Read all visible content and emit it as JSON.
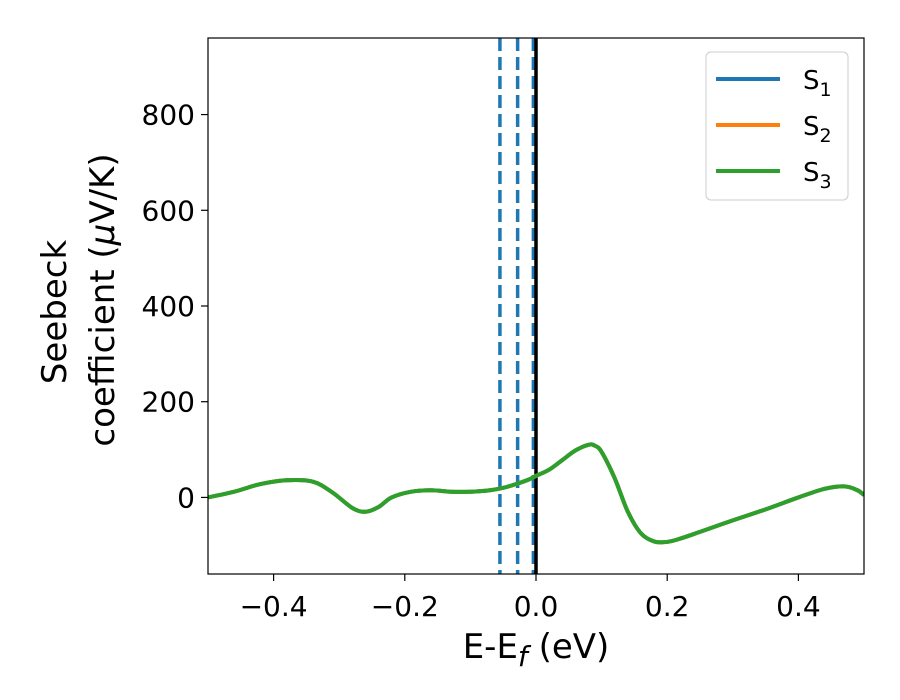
{
  "chart_data": {
    "type": "line",
    "title": "",
    "xlabel": {
      "main": "E-E",
      "sub": "f",
      "suffix": " (eV)"
    },
    "ylabel": {
      "line1": "Seebeck",
      "line2_prefix": "coefficient  (",
      "mu": "μ",
      "line2_suffix": "V/K)"
    },
    "xlim": [
      -0.5,
      0.5
    ],
    "ylim": [
      -160,
      960
    ],
    "x_ticks": [
      -0.4,
      -0.2,
      0.0,
      0.2,
      0.4
    ],
    "x_tick_labels": [
      "−0.4",
      "−0.2",
      "0.0",
      "0.2",
      "0.4"
    ],
    "y_ticks": [
      0,
      200,
      400,
      600,
      800
    ],
    "y_tick_labels": [
      "0",
      "200",
      "400",
      "600",
      "800"
    ],
    "grid": false,
    "legend_position": "top-right",
    "series": [
      {
        "name": "S",
        "sub": "1",
        "color": "#1f77b4",
        "x": [
          -0.5,
          -0.46,
          -0.42,
          -0.38,
          -0.34,
          -0.31,
          -0.28,
          -0.26,
          -0.24,
          -0.22,
          -0.19,
          -0.16,
          -0.13,
          -0.1,
          -0.07,
          -0.05,
          -0.03,
          -0.01,
          0.0,
          0.02,
          0.04,
          0.06,
          0.08,
          0.09,
          0.1,
          0.12,
          0.14,
          0.16,
          0.18,
          0.2,
          0.22,
          0.25,
          0.3,
          0.35,
          0.4,
          0.44,
          0.47,
          0.49,
          0.5
        ],
        "y": [
          0,
          12,
          28,
          36,
          33,
          10,
          -22,
          -30,
          -20,
          0,
          12,
          15,
          12,
          12,
          15,
          20,
          28,
          38,
          45,
          58,
          78,
          98,
          110,
          108,
          95,
          40,
          -30,
          -75,
          -92,
          -93,
          -86,
          -72,
          -48,
          -25,
          0,
          18,
          23,
          15,
          5
        ]
      },
      {
        "name": "S",
        "sub": "2",
        "color": "#ff7f0e",
        "x": [
          -0.5,
          -0.46,
          -0.42,
          -0.38,
          -0.34,
          -0.31,
          -0.28,
          -0.26,
          -0.24,
          -0.22,
          -0.19,
          -0.16,
          -0.13,
          -0.1,
          -0.07,
          -0.05,
          -0.03,
          -0.01,
          0.0,
          0.02,
          0.04,
          0.06,
          0.08,
          0.09,
          0.1,
          0.12,
          0.14,
          0.16,
          0.18,
          0.2,
          0.22,
          0.25,
          0.3,
          0.35,
          0.4,
          0.44,
          0.47,
          0.49,
          0.5
        ],
        "y": [
          0,
          12,
          28,
          36,
          33,
          10,
          -22,
          -30,
          -20,
          0,
          12,
          15,
          12,
          12,
          15,
          20,
          28,
          38,
          45,
          58,
          78,
          98,
          110,
          108,
          95,
          40,
          -30,
          -75,
          -92,
          -93,
          -86,
          -72,
          -48,
          -25,
          0,
          18,
          23,
          15,
          5
        ]
      },
      {
        "name": "S",
        "sub": "3",
        "color": "#2ca02c",
        "x": [
          -0.5,
          -0.46,
          -0.42,
          -0.38,
          -0.34,
          -0.31,
          -0.28,
          -0.26,
          -0.24,
          -0.22,
          -0.19,
          -0.16,
          -0.13,
          -0.1,
          -0.07,
          -0.05,
          -0.03,
          -0.01,
          0.0,
          0.02,
          0.04,
          0.06,
          0.08,
          0.09,
          0.1,
          0.12,
          0.14,
          0.16,
          0.18,
          0.2,
          0.22,
          0.25,
          0.3,
          0.35,
          0.4,
          0.44,
          0.47,
          0.49,
          0.5
        ],
        "y": [
          0,
          12,
          28,
          36,
          33,
          10,
          -22,
          -30,
          -20,
          0,
          12,
          15,
          12,
          12,
          15,
          20,
          28,
          38,
          45,
          58,
          78,
          98,
          110,
          108,
          95,
          40,
          -30,
          -75,
          -92,
          -93,
          -86,
          -72,
          -48,
          -25,
          0,
          18,
          23,
          15,
          5
        ]
      }
    ],
    "vertical_lines": [
      {
        "x": -0.055,
        "style": "dashed",
        "color": "#1f77b4"
      },
      {
        "x": -0.028,
        "style": "dashed",
        "color": "#1f77b4"
      },
      {
        "x": -0.004,
        "style": "dashed",
        "color": "#1f77b4"
      },
      {
        "x": 0.0,
        "style": "solid",
        "color": "#000000"
      }
    ]
  }
}
